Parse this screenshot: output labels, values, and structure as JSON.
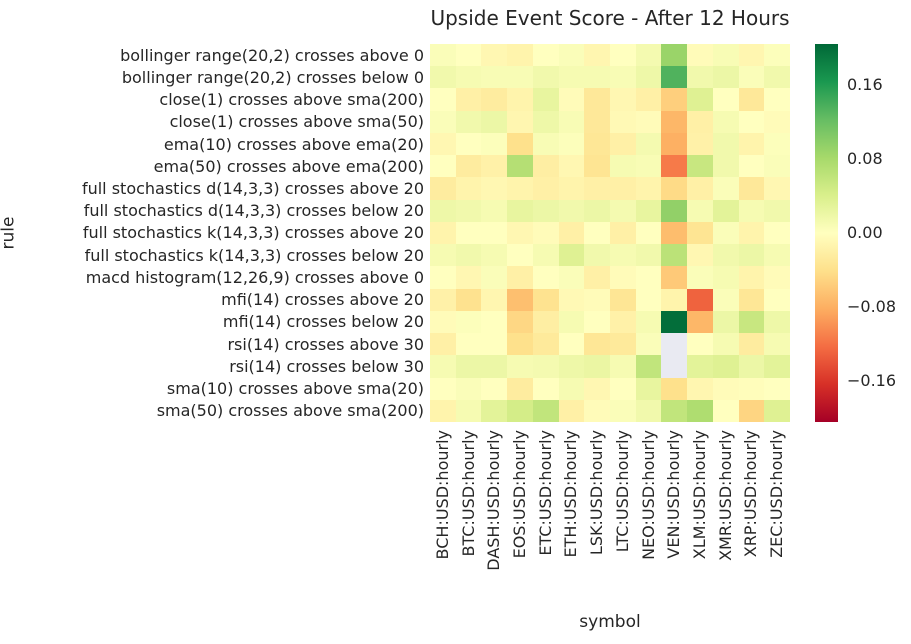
{
  "title": "Upside Event Score - After 12 Hours",
  "xlabel": "symbol",
  "ylabel": "rule",
  "colors": {
    "text": "#262626",
    "background": "#ffffff",
    "missing_cell": "#e9eaf2"
  },
  "colorbar": {
    "tick_values": [
      0.16,
      0.08,
      0.0,
      -0.08,
      -0.16
    ],
    "tick_labels": [
      "0.16",
      "0.08",
      "0.00",
      "−0.08",
      "−0.16"
    ],
    "vmin": -0.205,
    "vmax": 0.205,
    "colormap_name": "RdYlGn",
    "colormap_anchors": [
      "#a50026",
      "#d73027",
      "#f46d43",
      "#fdae61",
      "#fee08b",
      "#ffffbf",
      "#d9ef8b",
      "#a6d96a",
      "#66bd63",
      "#1a9850",
      "#006837"
    ]
  },
  "chart_data": {
    "type": "heatmap",
    "title": "Upside Event Score - After 12 Hours",
    "xlabel": "symbol",
    "ylabel": "rule",
    "legend_position": "right-colorbar",
    "grid": false,
    "value_range": [
      -0.205,
      0.205
    ],
    "columns": [
      "BCH:USD:hourly",
      "BTC:USD:hourly",
      "DASH:USD:hourly",
      "EOS:USD:hourly",
      "ETC:USD:hourly",
      "ETH:USD:hourly",
      "LSK:USD:hourly",
      "LTC:USD:hourly",
      "NEO:USD:hourly",
      "VEN:USD:hourly",
      "XLM:USD:hourly",
      "XMR:USD:hourly",
      "XRP:USD:hourly",
      "ZEC:USD:hourly"
    ],
    "rows": [
      "bollinger range(20,2) crosses above 0",
      "bollinger range(20,2) crosses below 0",
      "close(1) crosses above sma(200)",
      "close(1) crosses above sma(50)",
      "ema(10) crosses above ema(20)",
      "ema(50) crosses above ema(200)",
      "full stochastics d(14,3,3) crosses above 20",
      "full stochastics d(14,3,3) crosses below 20",
      "full stochastics k(14,3,3) crosses above 20",
      "full stochastics k(14,3,3) crosses below 20",
      "macd histogram(12,26,9) crosses above 0",
      "mfi(14) crosses above 20",
      "mfi(14) crosses below 20",
      "rsi(14) crosses above 30",
      "rsi(14) crosses below 30",
      "sma(10) crosses above sma(20)",
      "sma(50) crosses above sma(200)"
    ],
    "values": [
      [
        0.005,
        0.0,
        -0.01,
        -0.015,
        0.0,
        0.005,
        -0.012,
        0.0,
        0.012,
        0.09,
        -0.005,
        0.008,
        -0.012,
        0.003
      ],
      [
        0.015,
        0.01,
        0.008,
        0.008,
        0.015,
        0.01,
        0.01,
        0.008,
        0.018,
        0.135,
        0.015,
        0.02,
        0.005,
        0.015
      ],
      [
        0.0,
        -0.02,
        -0.025,
        -0.015,
        0.025,
        -0.005,
        -0.03,
        -0.01,
        -0.02,
        -0.055,
        0.035,
        0.0,
        -0.03,
        0.0
      ],
      [
        0.005,
        0.015,
        0.02,
        -0.012,
        0.018,
        0.008,
        -0.03,
        -0.008,
        -0.005,
        -0.075,
        -0.02,
        0.01,
        0.0,
        -0.005
      ],
      [
        -0.01,
        0.0,
        0.003,
        -0.04,
        0.008,
        0.003,
        -0.032,
        -0.02,
        0.012,
        -0.08,
        -0.018,
        0.015,
        -0.015,
        0.003
      ],
      [
        0.0,
        -0.025,
        -0.018,
        0.07,
        -0.022,
        -0.01,
        -0.035,
        0.01,
        0.008,
        -0.115,
        0.055,
        0.015,
        0.0,
        0.005
      ],
      [
        -0.025,
        -0.015,
        -0.01,
        -0.015,
        -0.02,
        -0.015,
        -0.02,
        -0.02,
        -0.015,
        -0.045,
        -0.02,
        0.005,
        -0.03,
        -0.01
      ],
      [
        0.018,
        0.015,
        0.01,
        0.025,
        0.02,
        0.015,
        0.02,
        0.012,
        0.025,
        0.095,
        0.01,
        0.03,
        0.01,
        0.015
      ],
      [
        -0.015,
        0.0,
        0.0,
        -0.01,
        -0.005,
        -0.02,
        0.0,
        -0.02,
        0.0,
        -0.07,
        -0.035,
        0.005,
        -0.015,
        0.0
      ],
      [
        0.01,
        0.015,
        0.01,
        0.0,
        0.01,
        0.035,
        0.015,
        0.01,
        0.015,
        0.065,
        -0.01,
        0.015,
        0.02,
        0.01
      ],
      [
        0.0,
        -0.01,
        0.005,
        -0.02,
        0.0,
        0.005,
        -0.02,
        -0.005,
        0.0,
        -0.06,
        0.005,
        0.01,
        -0.015,
        -0.005
      ],
      [
        -0.018,
        -0.038,
        -0.012,
        -0.068,
        -0.037,
        -0.008,
        -0.005,
        -0.033,
        0.0,
        -0.015,
        -0.13,
        0.005,
        -0.032,
        0.0
      ],
      [
        -0.005,
        0.003,
        0.0,
        -0.048,
        -0.022,
        0.01,
        0.0,
        -0.018,
        0.01,
        0.2,
        -0.075,
        0.02,
        0.055,
        0.018
      ],
      [
        -0.02,
        0.0,
        0.0,
        -0.04,
        -0.028,
        0.0,
        -0.032,
        -0.028,
        0.005,
        null,
        0.0,
        0.01,
        -0.025,
        0.01
      ],
      [
        0.01,
        0.02,
        0.02,
        0.01,
        0.012,
        0.018,
        0.022,
        0.01,
        0.06,
        null,
        0.03,
        0.035,
        0.02,
        0.03
      ],
      [
        0.0,
        0.005,
        0.0,
        -0.025,
        0.0,
        0.01,
        -0.01,
        0.0,
        0.025,
        -0.04,
        -0.012,
        -0.005,
        -0.003,
        0.0
      ],
      [
        -0.015,
        0.01,
        0.03,
        0.045,
        0.06,
        -0.02,
        -0.005,
        0.005,
        0.015,
        0.06,
        0.075,
        0.0,
        -0.05,
        0.035
      ]
    ]
  }
}
